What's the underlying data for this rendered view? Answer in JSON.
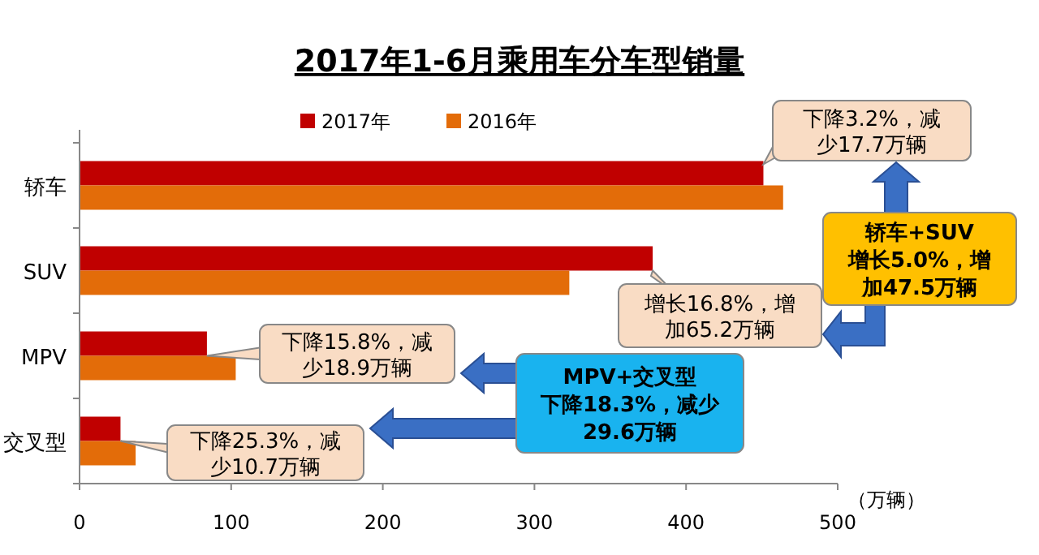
{
  "chart_data": {
    "type": "bar",
    "orientation": "horizontal",
    "title": "2017年1-6月乘用车分车型销量",
    "xlabel": "（万辆）",
    "categories": [
      "轿车",
      "SUV",
      "MPV",
      "交叉型"
    ],
    "series": [
      {
        "name": "2017年",
        "color": "#c00000",
        "values": [
          451,
          378,
          84,
          27
        ]
      },
      {
        "name": "2016年",
        "color": "#e36c09",
        "values": [
          464,
          323,
          103,
          37
        ]
      }
    ],
    "xlim": [
      0,
      500
    ],
    "xticks": [
      0,
      100,
      200,
      300,
      400,
      500
    ],
    "legend": "top",
    "grid": false,
    "annotations": [
      {
        "text": "下降3.2%，减少17.7万辆",
        "x": 451,
        "y": "轿车"
      },
      {
        "text": "增长16.8%，增加65.2万辆",
        "x": 378,
        "y": "SUV"
      },
      {
        "text": "下降15.8%，减少18.9万辆",
        "x": 84,
        "y": "MPV"
      },
      {
        "text": "下降25.3%，减少10.7万辆",
        "x": 27,
        "y": "交叉型"
      },
      "轿车+SUV增长5.0%，增加47.5万辆",
      "MPV+交叉型下降18.3%，减少29.6万辆"
    ]
  }
}
